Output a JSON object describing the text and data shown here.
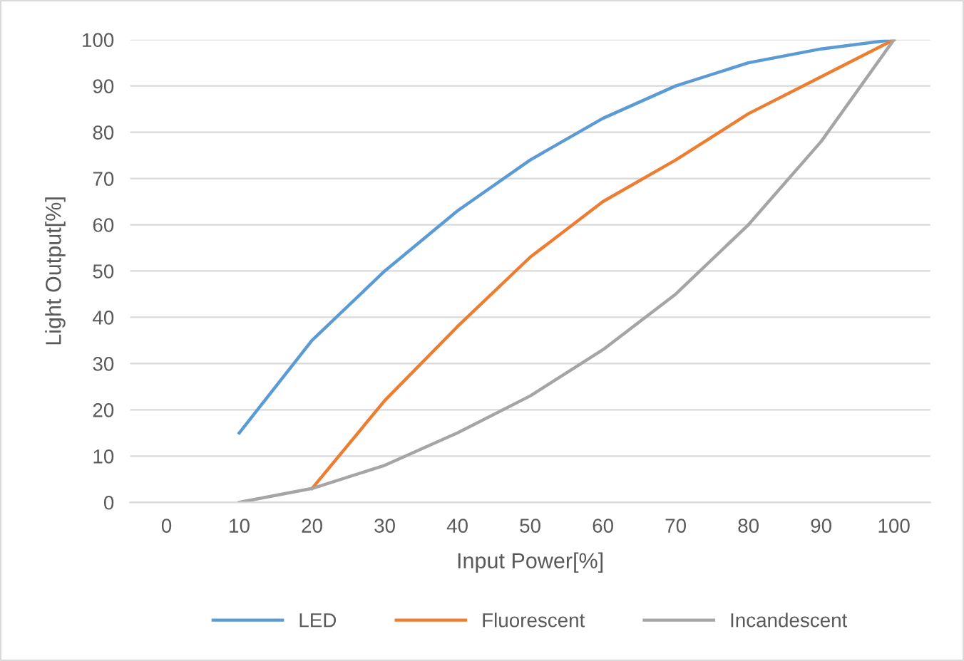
{
  "chart_data": {
    "type": "line",
    "xlabel": "Input Power[%]",
    "ylabel": "Light Output[%]",
    "categories": [
      "0",
      "10",
      "20",
      "30",
      "40",
      "50",
      "60",
      "70",
      "80",
      "90",
      "100"
    ],
    "series": [
      {
        "name": "LED",
        "color": "#5b9bd5",
        "values": [
          null,
          15,
          35,
          50,
          63,
          74,
          83,
          90,
          95,
          98,
          100
        ]
      },
      {
        "name": "Fluorescent",
        "color": "#ed7d31",
        "values": [
          null,
          null,
          3,
          22,
          38,
          53,
          65,
          74,
          84,
          92,
          100
        ]
      },
      {
        "name": "Incandescent",
        "color": "#a5a5a5",
        "values": [
          null,
          0,
          3,
          8,
          15,
          23,
          33,
          45,
          60,
          78,
          100
        ]
      }
    ],
    "ylim": [
      0,
      100
    ],
    "yticks": [
      0,
      10,
      20,
      30,
      40,
      50,
      60,
      70,
      80,
      90,
      100
    ],
    "grid": "y",
    "legend": "bottom",
    "marker": "none",
    "line_style": "solid"
  }
}
